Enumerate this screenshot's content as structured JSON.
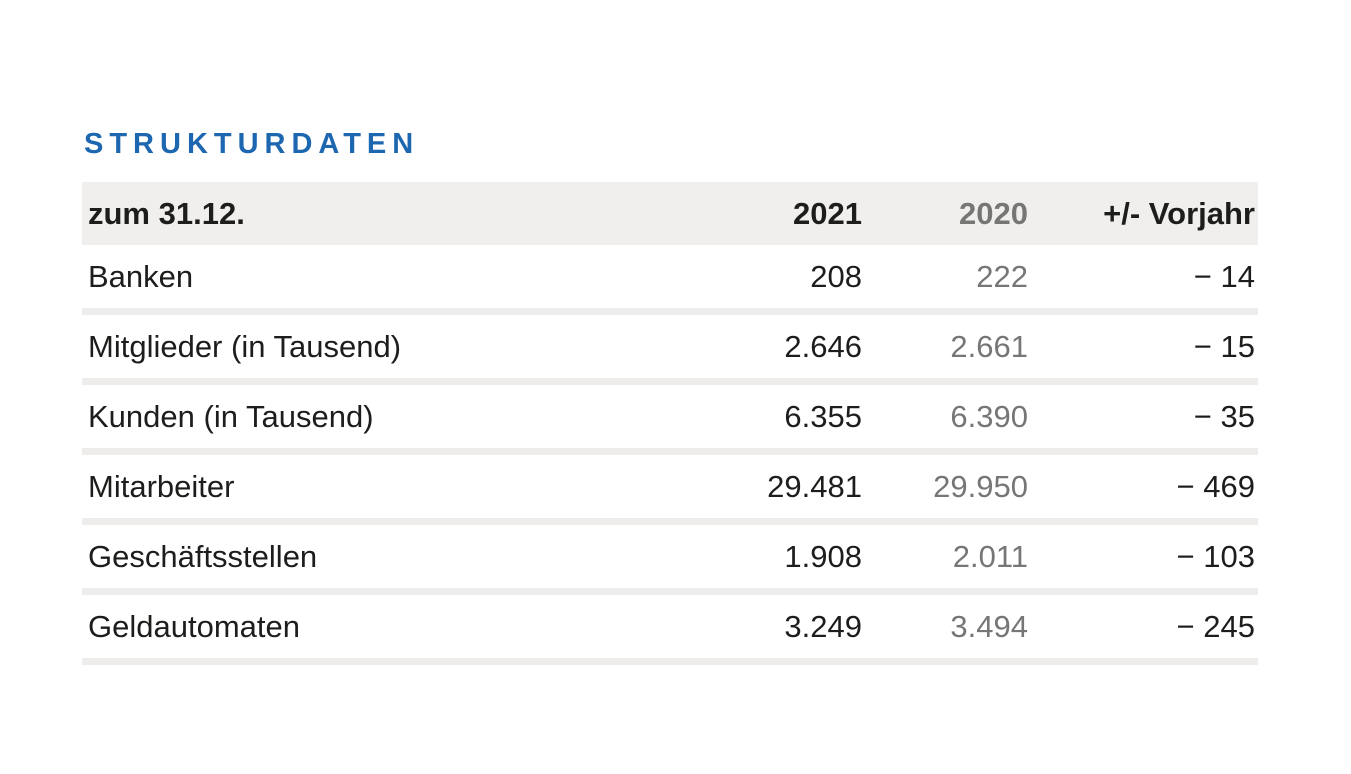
{
  "title": "STRUKTURDATEN",
  "table": {
    "header": {
      "period": "zum 31.12.",
      "year_current": "2021",
      "year_previous": "2020",
      "delta": "+/- Vorjahr"
    },
    "rows": [
      {
        "label": "Banken",
        "y2021": "208",
        "y2020": "222",
        "diff": "− 14"
      },
      {
        "label": "Mitglieder (in Tausend)",
        "y2021": "2.646",
        "y2020": "2.661",
        "diff": "− 15"
      },
      {
        "label": "Kunden (in Tausend)",
        "y2021": "6.355",
        "y2020": "6.390",
        "diff": "− 35"
      },
      {
        "label": "Mitarbeiter",
        "y2021": "29.481",
        "y2020": "29.950",
        "diff": "− 469"
      },
      {
        "label": "Geschäftsstellen",
        "y2021": "1.908",
        "y2020": "2.011",
        "diff": "− 103"
      },
      {
        "label": "Geldautomaten",
        "y2021": "3.249",
        "y2020": "3.494",
        "diff": "− 245"
      }
    ]
  },
  "colors": {
    "accent_blue": "#1d67b0",
    "muted_gray": "#767675",
    "header_bg": "#f0efee",
    "separator": "#eeedec",
    "text": "#1d1d1b"
  }
}
